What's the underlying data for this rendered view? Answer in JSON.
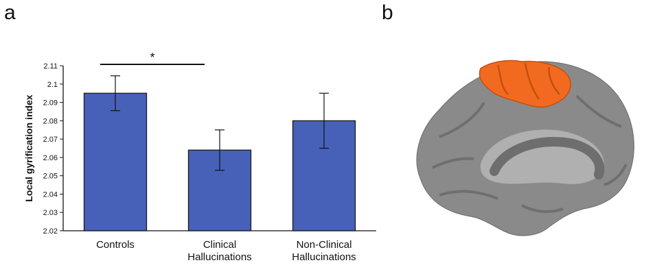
{
  "panels": {
    "a": "a",
    "b": "b"
  },
  "chart_data": {
    "type": "bar",
    "categories": [
      [
        "Controls"
      ],
      [
        "Clinical",
        "Hallucinations"
      ],
      [
        "Non-Clinical",
        "Hallucinations"
      ]
    ],
    "values": [
      2.095,
      2.064,
      2.08
    ],
    "error": [
      0.0095,
      0.011,
      0.015
    ],
    "ylabel": "Local gyrification index",
    "ylim": [
      2.02,
      2.11
    ],
    "yticks": [
      "2.02",
      "2.03",
      "2.04",
      "2.05",
      "2.06",
      "2.07",
      "2.08",
      "2.09",
      "2.1",
      "2.11"
    ],
    "bar_color": "#4760B8",
    "significance": {
      "between": [
        0,
        1
      ],
      "label": "*"
    }
  },
  "brain_image": {
    "cortex_color": "#8f8f8f",
    "highlight_color": "#F26A1F"
  }
}
